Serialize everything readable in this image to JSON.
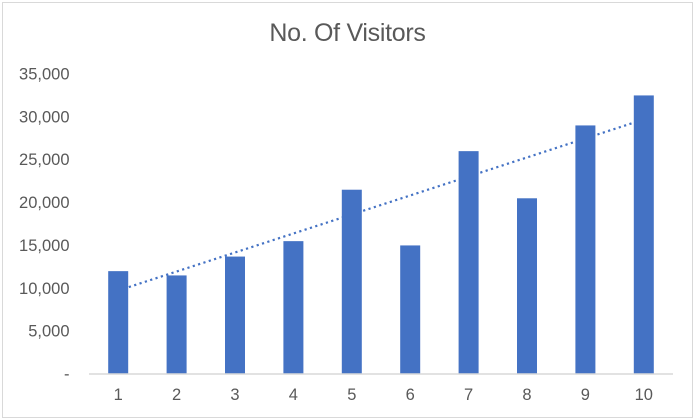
{
  "chart_data": {
    "type": "bar",
    "title": "No. Of Visitors",
    "categories": [
      "1",
      "2",
      "3",
      "4",
      "5",
      "6",
      "7",
      "8",
      "9",
      "10"
    ],
    "values": [
      12000,
      11500,
      13700,
      15500,
      21500,
      15000,
      26000,
      20500,
      29000,
      32500
    ],
    "y_ticks": [
      {
        "value": 0,
        "label": "-"
      },
      {
        "value": 5000,
        "label": "5,000"
      },
      {
        "value": 10000,
        "label": "10,000"
      },
      {
        "value": 15000,
        "label": "15,000"
      },
      {
        "value": 20000,
        "label": "20,000"
      },
      {
        "value": 25000,
        "label": "25,000"
      },
      {
        "value": 30000,
        "label": "30,000"
      },
      {
        "value": 35000,
        "label": "35,000"
      }
    ],
    "ylim": [
      0,
      35000
    ],
    "xlabel": "",
    "ylabel": "",
    "grid": false,
    "legend": false,
    "trendline": {
      "type": "linear",
      "style": "dotted",
      "color": "#4472C4",
      "start_value": 9700,
      "end_value": 29700
    },
    "bar_color": "#4472C4",
    "axis_line_color": "#d9d9d9",
    "label_color": "#595959",
    "title_color": "#595959",
    "border_color": "#d9d9d9",
    "background_color": "#ffffff"
  }
}
